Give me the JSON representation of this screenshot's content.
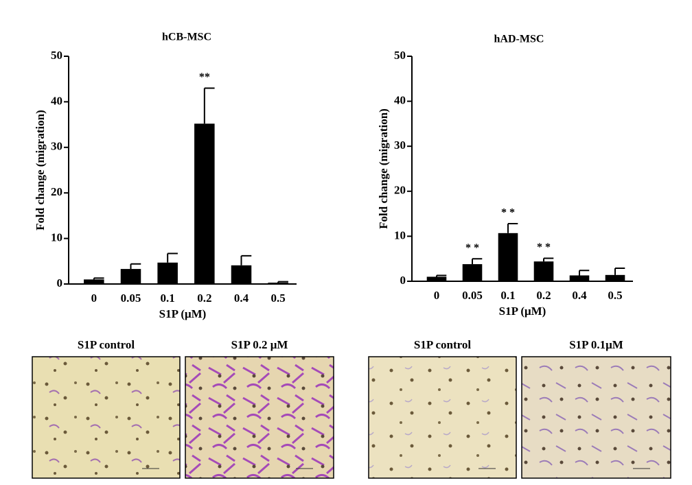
{
  "chart_data": [
    {
      "type": "bar",
      "title": "hCB-MSC",
      "xlabel": "S1P (μM)",
      "ylabel": "Fold change (migration)",
      "categories": [
        "0",
        "0.05",
        "0.1",
        "0.2",
        "0.4",
        "0.5"
      ],
      "values": [
        1.0,
        3.3,
        4.7,
        35.2,
        4.1,
        0.3
      ],
      "errors": [
        0.3,
        1.1,
        2.0,
        7.8,
        2.1,
        0.2
      ],
      "color": "#000000",
      "ylim": [
        0,
        50
      ],
      "yticks": [
        0,
        10,
        20,
        30,
        40,
        50
      ],
      "grid": false,
      "annotations": [
        {
          "text": "**",
          "category": "0.2"
        }
      ]
    },
    {
      "type": "bar",
      "title": "hAD-MSC",
      "xlabel": "S1P (μM)",
      "ylabel": "Fold change (migration)",
      "categories": [
        "0",
        "0.05",
        "0.1",
        "0.2",
        "0.4",
        "0.5"
      ],
      "values": [
        1.0,
        3.8,
        10.7,
        4.4,
        1.3,
        1.4
      ],
      "errors": [
        0.3,
        1.2,
        2.1,
        0.7,
        1.1,
        1.5
      ],
      "color": "#000000",
      "ylim": [
        0,
        50
      ],
      "yticks": [
        0,
        10,
        20,
        30,
        40,
        50
      ],
      "grid": false,
      "annotations": [
        {
          "text": "* *",
          "category": "0.05"
        },
        {
          "text": "* *",
          "category": "0.1"
        },
        {
          "text": "* *",
          "category": "0.2"
        }
      ]
    }
  ],
  "images": [
    {
      "label": "S1P control"
    },
    {
      "label": "S1P 0.2 μM"
    },
    {
      "label": "S1P control"
    },
    {
      "label": "S1P 0.1μM"
    }
  ]
}
